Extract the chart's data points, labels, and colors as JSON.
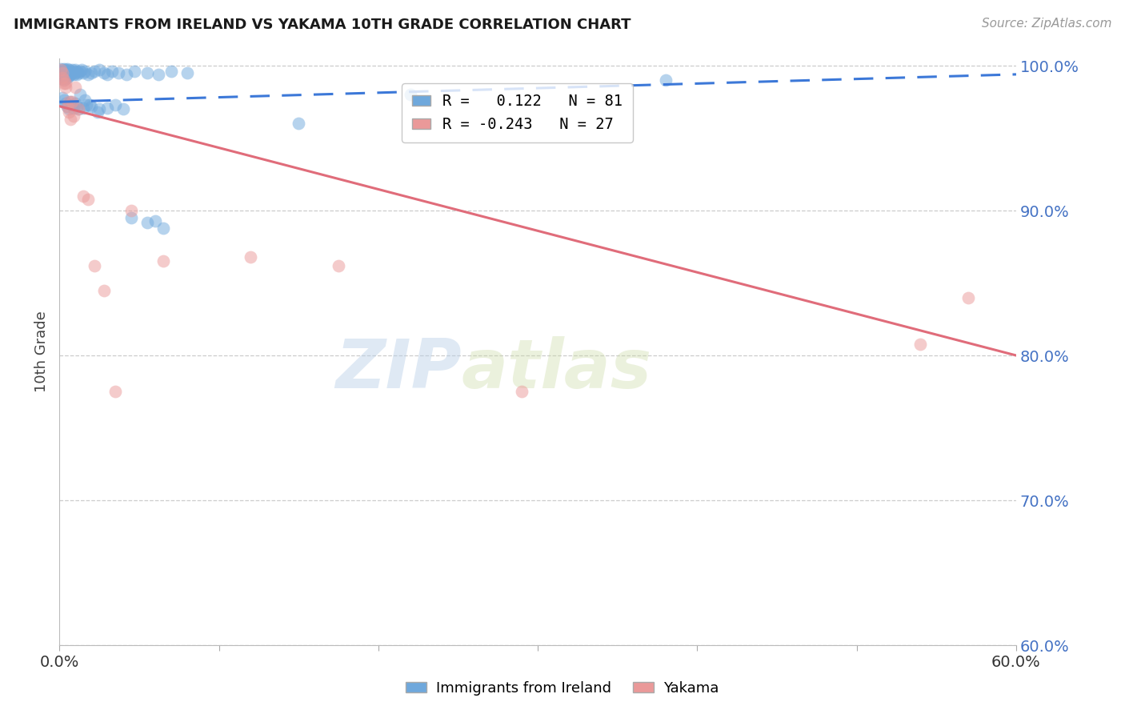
{
  "title": "IMMIGRANTS FROM IRELAND VS YAKAMA 10TH GRADE CORRELATION CHART",
  "source_text": "Source: ZipAtlas.com",
  "ylabel": "10th Grade",
  "y_ticks": [
    0.6,
    0.7,
    0.8,
    0.9,
    1.0
  ],
  "y_tick_labels": [
    "60.0%",
    "70.0%",
    "80.0%",
    "90.0%",
    "100.0%"
  ],
  "x_ticks": [
    0.0,
    0.1,
    0.2,
    0.3,
    0.4,
    0.5,
    0.6
  ],
  "x_tick_labels": [
    "0.0%",
    "",
    "",
    "",
    "",
    "",
    "60.0%"
  ],
  "blue_color": "#6fa8dc",
  "pink_color": "#ea9999",
  "blue_line_color": "#3c78d8",
  "pink_line_color": "#e06c7a",
  "legend_R_blue": "0.122",
  "legend_N_blue": "81",
  "legend_R_pink": "-0.243",
  "legend_N_pink": "27",
  "watermark_zip": "ZIP",
  "watermark_atlas": "atlas",
  "blue_scatter_x": [
    0.001,
    0.001,
    0.001,
    0.002,
    0.002,
    0.002,
    0.002,
    0.003,
    0.003,
    0.003,
    0.003,
    0.003,
    0.004,
    0.004,
    0.004,
    0.004,
    0.005,
    0.005,
    0.005,
    0.005,
    0.006,
    0.006,
    0.006,
    0.007,
    0.007,
    0.008,
    0.008,
    0.009,
    0.009,
    0.01,
    0.01,
    0.011,
    0.011,
    0.012,
    0.013,
    0.014,
    0.015,
    0.016,
    0.018,
    0.02,
    0.022,
    0.025,
    0.028,
    0.03,
    0.033,
    0.037,
    0.042,
    0.047,
    0.055,
    0.062,
    0.07,
    0.08,
    0.002,
    0.003,
    0.004,
    0.005,
    0.006,
    0.007,
    0.008,
    0.009,
    0.01,
    0.011,
    0.012,
    0.015,
    0.017,
    0.02,
    0.025,
    0.03,
    0.035,
    0.04,
    0.045,
    0.055,
    0.065,
    0.15,
    0.22,
    0.38,
    0.06,
    0.013,
    0.016,
    0.019,
    0.024
  ],
  "blue_scatter_y": [
    0.998,
    0.996,
    0.994,
    0.997,
    0.995,
    0.993,
    0.991,
    0.998,
    0.996,
    0.994,
    0.992,
    0.99,
    0.997,
    0.995,
    0.993,
    0.991,
    0.998,
    0.996,
    0.994,
    0.992,
    0.997,
    0.995,
    0.993,
    0.996,
    0.994,
    0.997,
    0.995,
    0.996,
    0.994,
    0.997,
    0.995,
    0.996,
    0.994,
    0.995,
    0.996,
    0.997,
    0.995,
    0.996,
    0.994,
    0.995,
    0.996,
    0.997,
    0.995,
    0.994,
    0.996,
    0.995,
    0.994,
    0.996,
    0.995,
    0.994,
    0.996,
    0.995,
    0.978,
    0.976,
    0.974,
    0.972,
    0.97,
    0.975,
    0.973,
    0.971,
    0.974,
    0.972,
    0.97,
    0.971,
    0.973,
    0.972,
    0.97,
    0.971,
    0.973,
    0.97,
    0.895,
    0.892,
    0.888,
    0.96,
    0.98,
    0.99,
    0.893,
    0.98,
    0.976,
    0.973,
    0.968
  ],
  "pink_scatter_x": [
    0.001,
    0.002,
    0.002,
    0.003,
    0.004,
    0.004,
    0.005,
    0.006,
    0.007,
    0.008,
    0.009,
    0.01,
    0.012,
    0.015,
    0.018,
    0.022,
    0.028,
    0.035,
    0.045,
    0.065,
    0.12,
    0.175,
    0.29,
    0.54,
    0.57,
    0.003,
    0.006
  ],
  "pink_scatter_y": [
    0.997,
    0.995,
    0.992,
    0.99,
    0.988,
    0.985,
    0.972,
    0.968,
    0.963,
    0.975,
    0.965,
    0.985,
    0.97,
    0.91,
    0.908,
    0.862,
    0.845,
    0.775,
    0.9,
    0.865,
    0.868,
    0.862,
    0.775,
    0.808,
    0.84,
    0.988,
    0.975
  ],
  "blue_line_x": [
    0.0,
    0.6
  ],
  "blue_line_y": [
    0.975,
    0.994
  ],
  "pink_line_x": [
    0.0,
    0.6
  ],
  "pink_line_y": [
    0.972,
    0.8
  ],
  "xlim": [
    0.0,
    0.6
  ],
  "ylim": [
    0.6,
    1.005
  ]
}
